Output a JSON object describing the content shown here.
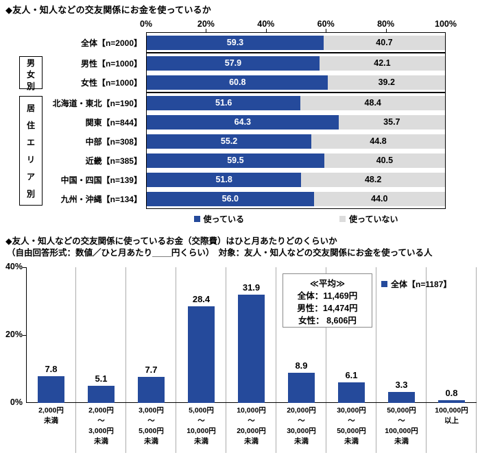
{
  "colors": {
    "bar_blue": "#254A9B",
    "bar_gray": "#DCDCDC",
    "grid_line": "#ABABAB",
    "border_black": "#000000"
  },
  "chart_data": [
    {
      "type": "bar",
      "variant": "horizontal-stacked",
      "title": "◆友人・知人などの交友関係にお金を使っているか",
      "xlim": [
        0,
        100
      ],
      "axis_ticks": [
        "0%",
        "20%",
        "40%",
        "60%",
        "80%",
        "100%"
      ],
      "legend": [
        {
          "label": "使っている",
          "color": "#254A9B"
        },
        {
          "label": "使っていない",
          "color": "#DCDCDC"
        }
      ],
      "series_names": [
        "使っている",
        "使っていない"
      ],
      "groups": [
        {
          "label": "",
          "rows": [
            {
              "label": "全体【n=2000】",
              "values": [
                59.3,
                40.7
              ]
            }
          ]
        },
        {
          "label": "男女別",
          "rows": [
            {
              "label": "男性【n=1000】",
              "values": [
                57.9,
                42.1
              ]
            },
            {
              "label": "女性【n=1000】",
              "values": [
                60.8,
                39.2
              ]
            }
          ]
        },
        {
          "label": "居住エリア別",
          "rows": [
            {
              "label": "北海道・東北【n=190】",
              "values": [
                51.6,
                48.4
              ]
            },
            {
              "label": "関東【n=844】",
              "values": [
                64.3,
                35.7
              ]
            },
            {
              "label": "中部【n=308】",
              "values": [
                55.2,
                44.8
              ]
            },
            {
              "label": "近畿【n=385】",
              "values": [
                59.5,
                40.5
              ]
            },
            {
              "label": "中国・四国【n=139】",
              "values": [
                51.8,
                48.2
              ]
            },
            {
              "label": "九州・沖縄【n=134】",
              "values": [
                56.0,
                44.0
              ]
            }
          ]
        }
      ]
    },
    {
      "type": "bar",
      "variant": "vertical",
      "title": "◆友人・知人などの交友関係に使っているお金（交際費）はひと月あたりどのくらいか",
      "subtitle": "（自由回答形式：数値／ひと月あたり____円くらい）　対象：友人・知人などの交友関係にお金を使っている人",
      "ylim": [
        0,
        40
      ],
      "y_ticks": [
        "0%",
        "20%",
        "40%"
      ],
      "legend": "全体【n=1187】",
      "average_box": {
        "title": "≪平均≫",
        "lines": [
          "全体：11,469円",
          "男性：14,474円",
          "女性： 8,606円"
        ]
      },
      "categories": [
        [
          "2,000円",
          "未満"
        ],
        [
          "2,000円",
          "～",
          "3,000円",
          "未満"
        ],
        [
          "3,000円",
          "～",
          "5,000円",
          "未満"
        ],
        [
          "5,000円",
          "～",
          "10,000円",
          "未満"
        ],
        [
          "10,000円",
          "～",
          "20,000円",
          "未満"
        ],
        [
          "20,000円",
          "～",
          "30,000円",
          "未満"
        ],
        [
          "30,000円",
          "～",
          "50,000円",
          "未満"
        ],
        [
          "50,000円",
          "～",
          "100,000円",
          "未満"
        ],
        [
          "100,000円",
          "以上"
        ]
      ],
      "values": [
        7.8,
        5.1,
        7.7,
        28.4,
        31.9,
        8.9,
        6.1,
        3.3,
        0.8
      ]
    }
  ]
}
